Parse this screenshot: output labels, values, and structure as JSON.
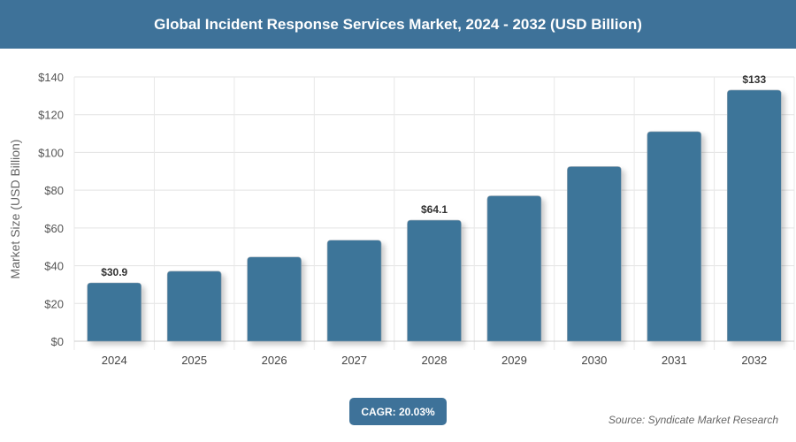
{
  "chart_data": {
    "type": "bar",
    "title": "Global Incident Response Services Market, 2024 - 2032 (USD Billion)",
    "ylabel": "Market Size (USD Billion)",
    "xlabel": "",
    "categories": [
      "2024",
      "2025",
      "2026",
      "2027",
      "2028",
      "2029",
      "2030",
      "2031",
      "2032"
    ],
    "values": [
      30.9,
      37.1,
      44.6,
      53.5,
      64.1,
      77.0,
      92.5,
      111.0,
      133
    ],
    "data_labels": {
      "0": "$30.9",
      "4": "$64.1",
      "8": "$133"
    },
    "yticks": [
      "$0",
      "$20",
      "$40",
      "$60",
      "$80",
      "$100",
      "$120",
      "$140"
    ],
    "ylim": [
      0,
      140
    ],
    "grid": true,
    "bar_color": "#3e7599"
  },
  "footer": {
    "cagr": "CAGR: 20.03%",
    "source": "Source: Syndicate Market Research"
  }
}
